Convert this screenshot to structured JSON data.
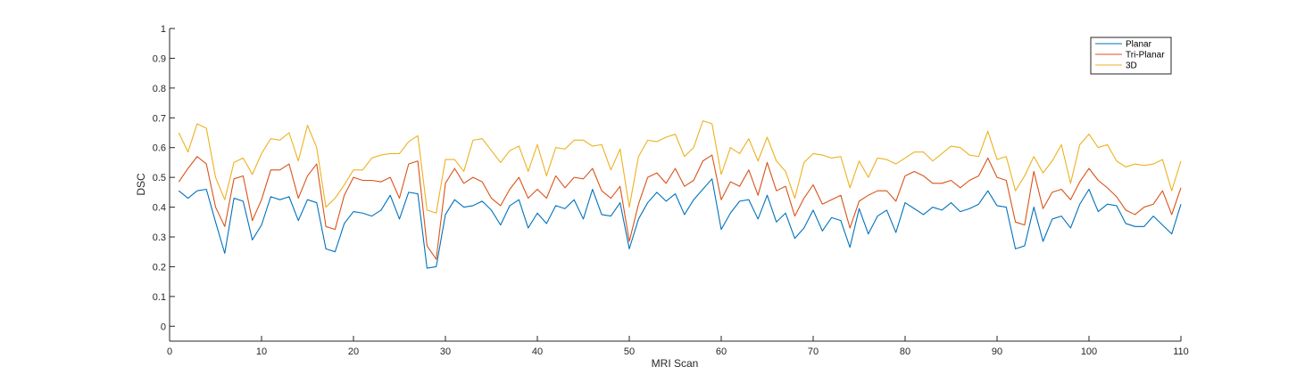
{
  "chart_data": {
    "type": "line",
    "title": "",
    "xlabel": "MRI Scan",
    "ylabel": "DSC",
    "xlim": [
      0,
      110
    ],
    "ylim": [
      -0.05,
      1
    ],
    "xticks": [
      0,
      10,
      20,
      30,
      40,
      50,
      60,
      70,
      80,
      90,
      100,
      110
    ],
    "yticks": [
      0,
      0.1,
      0.2,
      0.3,
      0.4,
      0.5,
      0.6,
      0.7,
      0.8,
      0.9,
      1
    ],
    "grid": false,
    "legend_position": "top-right",
    "x": [
      1,
      2,
      3,
      4,
      5,
      6,
      7,
      8,
      9,
      10,
      11,
      12,
      13,
      14,
      15,
      16,
      17,
      18,
      19,
      20,
      21,
      22,
      23,
      24,
      25,
      26,
      27,
      28,
      29,
      30,
      31,
      32,
      33,
      34,
      35,
      36,
      37,
      38,
      39,
      40,
      41,
      42,
      43,
      44,
      45,
      46,
      47,
      48,
      49,
      50,
      51,
      52,
      53,
      54,
      55,
      56,
      57,
      58,
      59,
      60,
      61,
      62,
      63,
      64,
      65,
      66,
      67,
      68,
      69,
      70,
      71,
      72,
      73,
      74,
      75,
      76,
      77,
      78,
      79,
      80,
      81,
      82,
      83,
      84,
      85,
      86,
      87,
      88,
      89,
      90,
      91,
      92,
      93,
      94,
      95,
      96,
      97,
      98,
      99,
      100,
      101,
      102,
      103,
      104,
      105,
      106,
      107,
      108,
      109,
      110
    ],
    "series": [
      {
        "name": "Planar",
        "color": "#0072bd",
        "values": [
          0.455,
          0.43,
          0.455,
          0.46,
          0.35,
          0.245,
          0.43,
          0.42,
          0.29,
          0.34,
          0.435,
          0.425,
          0.435,
          0.355,
          0.425,
          0.415,
          0.26,
          0.25,
          0.345,
          0.385,
          0.38,
          0.37,
          0.39,
          0.44,
          0.36,
          0.45,
          0.445,
          0.195,
          0.2,
          0.375,
          0.425,
          0.4,
          0.405,
          0.42,
          0.39,
          0.34,
          0.405,
          0.425,
          0.33,
          0.38,
          0.345,
          0.405,
          0.395,
          0.425,
          0.36,
          0.46,
          0.375,
          0.37,
          0.415,
          0.26,
          0.36,
          0.415,
          0.45,
          0.42,
          0.445,
          0.375,
          0.425,
          0.46,
          0.495,
          0.325,
          0.38,
          0.42,
          0.425,
          0.36,
          0.44,
          0.35,
          0.38,
          0.295,
          0.33,
          0.39,
          0.32,
          0.365,
          0.355,
          0.265,
          0.395,
          0.31,
          0.37,
          0.39,
          0.315,
          0.415,
          0.395,
          0.375,
          0.4,
          0.39,
          0.415,
          0.385,
          0.395,
          0.41,
          0.455,
          0.405,
          0.4,
          0.26,
          0.27,
          0.4,
          0.285,
          0.36,
          0.37,
          0.33,
          0.41,
          0.46,
          0.385,
          0.41,
          0.405,
          0.345,
          0.335,
          0.335,
          0.37,
          0.34,
          0.31,
          0.41
        ]
      },
      {
        "name": "Tri-Planar",
        "color": "#d95319",
        "values": [
          0.485,
          0.53,
          0.57,
          0.545,
          0.4,
          0.335,
          0.495,
          0.505,
          0.355,
          0.425,
          0.525,
          0.525,
          0.545,
          0.43,
          0.505,
          0.545,
          0.335,
          0.325,
          0.44,
          0.5,
          0.49,
          0.49,
          0.485,
          0.5,
          0.43,
          0.545,
          0.555,
          0.27,
          0.225,
          0.48,
          0.53,
          0.48,
          0.5,
          0.485,
          0.43,
          0.405,
          0.46,
          0.5,
          0.43,
          0.46,
          0.43,
          0.505,
          0.465,
          0.5,
          0.495,
          0.53,
          0.455,
          0.43,
          0.47,
          0.285,
          0.41,
          0.5,
          0.515,
          0.48,
          0.53,
          0.47,
          0.49,
          0.555,
          0.575,
          0.425,
          0.485,
          0.47,
          0.525,
          0.44,
          0.55,
          0.455,
          0.47,
          0.37,
          0.43,
          0.475,
          0.41,
          0.425,
          0.44,
          0.33,
          0.42,
          0.44,
          0.455,
          0.455,
          0.42,
          0.505,
          0.52,
          0.505,
          0.48,
          0.48,
          0.49,
          0.465,
          0.49,
          0.505,
          0.565,
          0.5,
          0.49,
          0.35,
          0.34,
          0.52,
          0.395,
          0.45,
          0.46,
          0.425,
          0.485,
          0.53,
          0.49,
          0.465,
          0.435,
          0.39,
          0.375,
          0.4,
          0.41,
          0.455,
          0.375,
          0.465
        ]
      },
      {
        "name": "3D",
        "color": "#edb120",
        "values": [
          0.65,
          0.585,
          0.68,
          0.665,
          0.5,
          0.425,
          0.55,
          0.565,
          0.51,
          0.58,
          0.63,
          0.625,
          0.65,
          0.555,
          0.675,
          0.6,
          0.4,
          0.43,
          0.475,
          0.525,
          0.525,
          0.565,
          0.575,
          0.58,
          0.58,
          0.62,
          0.64,
          0.39,
          0.38,
          0.56,
          0.56,
          0.52,
          0.625,
          0.63,
          0.59,
          0.55,
          0.59,
          0.605,
          0.52,
          0.61,
          0.505,
          0.6,
          0.595,
          0.625,
          0.625,
          0.605,
          0.61,
          0.525,
          0.595,
          0.4,
          0.57,
          0.625,
          0.62,
          0.635,
          0.645,
          0.57,
          0.6,
          0.69,
          0.68,
          0.51,
          0.6,
          0.58,
          0.63,
          0.555,
          0.635,
          0.555,
          0.52,
          0.43,
          0.55,
          0.58,
          0.575,
          0.565,
          0.57,
          0.465,
          0.555,
          0.5,
          0.565,
          0.56,
          0.545,
          0.565,
          0.585,
          0.585,
          0.555,
          0.58,
          0.605,
          0.6,
          0.575,
          0.57,
          0.655,
          0.56,
          0.57,
          0.455,
          0.505,
          0.57,
          0.515,
          0.555,
          0.61,
          0.48,
          0.61,
          0.645,
          0.6,
          0.61,
          0.555,
          0.535,
          0.545,
          0.54,
          0.545,
          0.56,
          0.455,
          0.555
        ]
      }
    ]
  }
}
